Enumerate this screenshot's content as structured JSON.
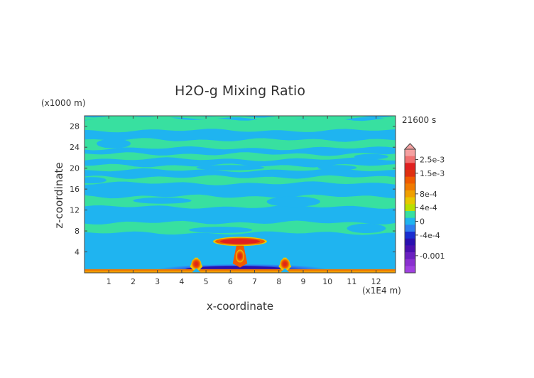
{
  "chart_data": {
    "type": "heatmap",
    "title": "H2O-g Mixing Ratio",
    "xlabel": "x-coordinate",
    "ylabel": "z-coordinate",
    "x_unit": "(x1E4 m)",
    "y_unit": "(x1000 m)",
    "time_label": "21600 s",
    "xlim": [
      0,
      12.8
    ],
    "ylim": [
      0,
      30
    ],
    "x_ticks": [
      "1",
      "2",
      "3",
      "4",
      "5",
      "6",
      "7",
      "8",
      "9",
      "10",
      "11",
      "12"
    ],
    "y_ticks": [
      "4",
      "8",
      "12",
      "16",
      "20",
      "24",
      "28"
    ],
    "colorbar": {
      "labels": [
        "2.5e-3",
        "1.5e-3",
        "8e-4",
        "4e-4",
        "0",
        "-4e-4",
        "-0.001"
      ],
      "label_values": [
        0.0025,
        0.0015,
        0.0008,
        0.0004,
        0,
        -0.0004,
        -0.001
      ],
      "levels": [
        0.003,
        0.0025,
        0.002,
        0.0015,
        0.0012,
        0.001,
        0.0008,
        0.0006,
        0.0004,
        0.0002,
        0,
        -0.0002,
        -0.0004,
        -0.0006,
        -0.0008,
        -0.001,
        -0.0012,
        -0.0015
      ],
      "colors": [
        "#f5a0a0",
        "#f07070",
        "#e02020",
        "#e03010",
        "#f05a00",
        "#f07a00",
        "#f0a000",
        "#e8c800",
        "#b8e000",
        "#38e0a0",
        "#1fb4f0",
        "#2f7ff0",
        "#1a2ed0",
        "#2a10b0",
        "#4a10b0",
        "#6a20c0",
        "#8a30d0",
        "#a040e0"
      ]
    },
    "background": {
      "value": 0,
      "color": "#1fb4f0"
    },
    "bands": [
      {
        "z_range": [
          29.4,
          30
        ],
        "value": 0.0002,
        "color": "#38e0a0"
      },
      {
        "z_range": [
          27.2,
          29.4
        ],
        "value": 0.0002,
        "color": "#38e0a0"
      },
      {
        "z_range": [
          23.8,
          25.4
        ],
        "value": 0.0002,
        "color": "#38e0a0"
      },
      {
        "z_range": [
          21.7,
          22.7
        ],
        "value": 0.0002,
        "color": "#38e0a0"
      },
      {
        "z_range": [
          19.6,
          20.5
        ],
        "value": 0.0002,
        "color": "#38e0a0"
      },
      {
        "z_range": [
          17.1,
          18.3
        ],
        "value": 0.0002,
        "color": "#38e0a0"
      },
      {
        "z_range": [
          12.6,
          14.6
        ],
        "value": 0.0002,
        "color": "#38e0a0"
      },
      {
        "z_range": [
          7.6,
          9.6
        ],
        "value": 0.0002,
        "color": "#38e0a0"
      }
    ],
    "features": [
      {
        "name": "surface-layer",
        "x_range": [
          0,
          12.8
        ],
        "z_range": [
          0,
          0.7
        ],
        "max_value": 0.0008
      },
      {
        "name": "anvil-outflow",
        "x_center": 6.4,
        "z_center": 6.0,
        "max_value": 0.0025
      },
      {
        "name": "central-updraft",
        "x_center": 6.4,
        "z_range": [
          1,
          7
        ],
        "max_value": 0.0025
      },
      {
        "name": "left-updraft",
        "x_center": 4.6,
        "z_range": [
          0,
          3
        ],
        "max_value": 0.0025
      },
      {
        "name": "right-updraft",
        "x_center": 8.25,
        "z_range": [
          0,
          3
        ],
        "max_value": 0.0025
      },
      {
        "name": "dry-anomaly",
        "x_range": [
          3.0,
          10.0
        ],
        "z_range": [
          0,
          1.2
        ],
        "min_value": -0.001
      }
    ]
  }
}
